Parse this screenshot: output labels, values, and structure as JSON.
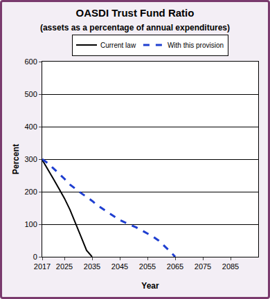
{
  "chart_data": {
    "type": "line",
    "title": "OASDI Trust Fund Ratio",
    "subtitle": "(assets as a percentage of annual expenditures)",
    "x_label": "Year",
    "y_label": "Percent",
    "x": [
      2017,
      2019,
      2021,
      2023,
      2025,
      2027,
      2029,
      2031,
      2033,
      2035,
      2037,
      2039,
      2041,
      2043,
      2045,
      2047,
      2049,
      2051,
      2053,
      2055,
      2057,
      2059,
      2061,
      2063,
      2065
    ],
    "series": [
      {
        "name": "Current law",
        "color": "#000000",
        "line_style": "solid",
        "values": [
          298,
          270,
          240,
          210,
          180,
          145,
          105,
          62,
          20,
          0,
          null,
          null,
          null,
          null,
          null,
          null,
          null,
          null,
          null,
          null,
          null,
          null,
          null,
          null,
          null
        ]
      },
      {
        "name": "With this provision",
        "color": "#1f3fd0",
        "line_style": "dash",
        "values": [
          300,
          288,
          272,
          257,
          240,
          222,
          208,
          196,
          184,
          172,
          158,
          146,
          135,
          124,
          113,
          105,
          98,
          90,
          81,
          72,
          62,
          50,
          35,
          18,
          0
        ]
      }
    ],
    "xlim": [
      2017,
      2095
    ],
    "xticks": [
      2017,
      2025,
      2035,
      2045,
      2055,
      2065,
      2075,
      2085
    ],
    "ylim": [
      0,
      600
    ],
    "yticks": [
      0,
      100,
      200,
      300,
      400,
      500,
      600
    ],
    "grid": true,
    "legend": "top"
  }
}
